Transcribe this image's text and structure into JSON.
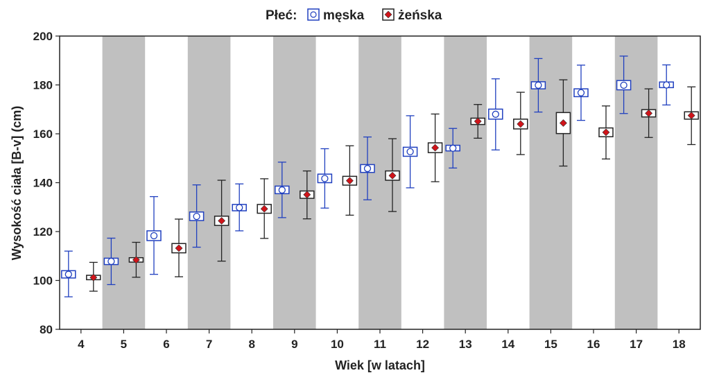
{
  "chart_data": {
    "type": "box-whisker",
    "xlabel": "Wiek [w latach]",
    "ylabel": "Wysokość ciała [B-v] (cm)",
    "ylim": [
      80,
      200
    ],
    "yticks": [
      80,
      100,
      120,
      140,
      160,
      180,
      200
    ],
    "categories": [
      "4",
      "5",
      "6",
      "7",
      "8",
      "9",
      "10",
      "11",
      "12",
      "13",
      "14",
      "15",
      "16",
      "17",
      "18"
    ],
    "shaded_categories": [
      "5",
      "7",
      "9",
      "11",
      "13",
      "15",
      "17"
    ],
    "legend": {
      "title": "Płeć:",
      "position": "top-center"
    },
    "series": [
      {
        "name": "męska",
        "color": "#1f3fbf",
        "marker": "circle",
        "mean": [
          102.5,
          107.8,
          118.3,
          126.2,
          129.8,
          137.0,
          141.7,
          145.8,
          152.7,
          154.1,
          168.0,
          179.9,
          176.8,
          179.9,
          180.0
        ],
        "box_low": [
          101.0,
          106.5,
          116.3,
          124.5,
          128.5,
          135.5,
          140.0,
          144.2,
          150.8,
          153.0,
          166.0,
          178.4,
          175.2,
          178.0,
          178.9
        ],
        "box_high": [
          104.0,
          109.1,
          120.3,
          128.0,
          131.1,
          138.6,
          143.5,
          147.4,
          154.5,
          155.3,
          170.1,
          181.3,
          178.4,
          181.8,
          181.2
        ],
        "whisker_low": [
          93.3,
          98.3,
          102.5,
          113.6,
          120.3,
          125.7,
          129.6,
          133.0,
          137.9,
          146.0,
          153.4,
          168.9,
          165.5,
          168.3,
          171.8
        ],
        "whisker_high": [
          112.0,
          117.3,
          134.3,
          139.1,
          139.5,
          148.4,
          153.9,
          158.7,
          167.4,
          162.2,
          182.5,
          190.8,
          188.1,
          191.8,
          188.2
        ]
      },
      {
        "name": "żeńska",
        "color": "#222222",
        "marker_color": "#d0141a",
        "marker": "diamond",
        "mean": [
          101.2,
          108.4,
          113.2,
          124.4,
          129.3,
          135.1,
          140.8,
          142.9,
          154.3,
          165.1,
          164.0,
          164.4,
          160.6,
          168.4,
          167.5
        ],
        "box_low": [
          100.3,
          107.5,
          111.3,
          122.5,
          127.5,
          133.6,
          139.0,
          141.0,
          152.3,
          163.8,
          162.0,
          160.1,
          158.8,
          166.9,
          166.0
        ],
        "box_high": [
          102.1,
          109.3,
          115.1,
          126.3,
          131.1,
          136.6,
          142.6,
          144.8,
          156.3,
          166.4,
          166.0,
          168.7,
          162.4,
          169.9,
          169.0
        ],
        "whisker_low": [
          95.6,
          101.3,
          101.5,
          107.9,
          117.2,
          125.2,
          126.7,
          128.2,
          140.4,
          158.2,
          151.5,
          146.8,
          149.7,
          158.5,
          155.6
        ],
        "whisker_high": [
          107.4,
          115.6,
          125.1,
          141.0,
          141.6,
          144.8,
          155.1,
          158.0,
          168.1,
          172.0,
          177.0,
          182.1,
          171.4,
          178.4,
          179.2
        ]
      }
    ]
  }
}
